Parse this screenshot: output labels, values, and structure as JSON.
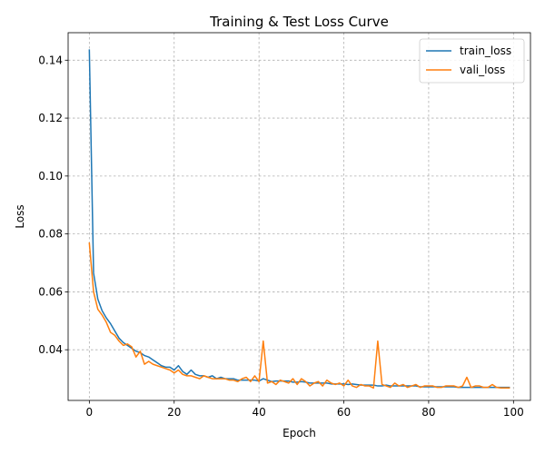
{
  "chart_data": {
    "type": "line",
    "title": "Training & Test Loss Curve",
    "xlabel": "Epoch",
    "ylabel": "Loss",
    "xlim": [
      -5,
      104
    ],
    "ylim": [
      0.0225,
      0.1495
    ],
    "x_ticks": [
      0,
      20,
      40,
      60,
      80,
      100
    ],
    "x_tick_labels": [
      "0",
      "20",
      "40",
      "60",
      "80",
      "100"
    ],
    "y_ticks": [
      0.04,
      0.06,
      0.08,
      0.1,
      0.12,
      0.14
    ],
    "y_tick_labels": [
      "0.04",
      "0.06",
      "0.08",
      "0.10",
      "0.12",
      "0.14"
    ],
    "grid": true,
    "legend_position": "upper right",
    "x": [
      0,
      1,
      2,
      3,
      4,
      5,
      6,
      7,
      8,
      9,
      10,
      11,
      12,
      13,
      14,
      15,
      16,
      17,
      18,
      19,
      20,
      21,
      22,
      23,
      24,
      25,
      26,
      27,
      28,
      29,
      30,
      31,
      32,
      33,
      34,
      35,
      36,
      37,
      38,
      39,
      40,
      41,
      42,
      43,
      44,
      45,
      46,
      47,
      48,
      49,
      50,
      51,
      52,
      53,
      54,
      55,
      56,
      57,
      58,
      59,
      60,
      61,
      62,
      63,
      64,
      65,
      66,
      67,
      68,
      69,
      70,
      71,
      72,
      73,
      74,
      75,
      76,
      77,
      78,
      79,
      80,
      81,
      82,
      83,
      84,
      85,
      86,
      87,
      88,
      89,
      90,
      91,
      92,
      93,
      94,
      95,
      96,
      97,
      98,
      99
    ],
    "series": [
      {
        "name": "train_loss",
        "color": "#1f77b4",
        "values": [
          0.1435,
          0.0665,
          0.0575,
          0.0535,
          0.051,
          0.049,
          0.0465,
          0.044,
          0.0425,
          0.0415,
          0.0405,
          0.0395,
          0.039,
          0.038,
          0.0375,
          0.0365,
          0.0355,
          0.0345,
          0.034,
          0.034,
          0.033,
          0.0345,
          0.0325,
          0.0315,
          0.033,
          0.0315,
          0.031,
          0.031,
          0.0305,
          0.031,
          0.03,
          0.0305,
          0.03,
          0.03,
          0.03,
          0.0295,
          0.0295,
          0.0295,
          0.0295,
          0.0295,
          0.0292,
          0.03,
          0.0295,
          0.029,
          0.0292,
          0.0292,
          0.0292,
          0.0292,
          0.0288,
          0.0288,
          0.029,
          0.0288,
          0.0285,
          0.0285,
          0.0285,
          0.0285,
          0.0285,
          0.0282,
          0.0282,
          0.0282,
          0.0282,
          0.028,
          0.0282,
          0.028,
          0.0278,
          0.0278,
          0.0278,
          0.0278,
          0.0275,
          0.0275,
          0.0278,
          0.0275,
          0.0275,
          0.0275,
          0.0275,
          0.0275,
          0.0275,
          0.0275,
          0.0272,
          0.0272,
          0.0272,
          0.0272,
          0.0272,
          0.0272,
          0.0272,
          0.0272,
          0.0272,
          0.027,
          0.027,
          0.027,
          0.027,
          0.027,
          0.027,
          0.027,
          0.027,
          0.027,
          0.027,
          0.027,
          0.027,
          0.027
        ]
      },
      {
        "name": "vali_loss",
        "color": "#ff7f0e",
        "values": [
          0.0768,
          0.06,
          0.054,
          0.052,
          0.0495,
          0.046,
          0.045,
          0.043,
          0.0415,
          0.042,
          0.041,
          0.0375,
          0.0395,
          0.035,
          0.036,
          0.035,
          0.0345,
          0.034,
          0.0335,
          0.033,
          0.032,
          0.033,
          0.0315,
          0.031,
          0.031,
          0.0305,
          0.03,
          0.031,
          0.0305,
          0.03,
          0.03,
          0.03,
          0.03,
          0.0295,
          0.0295,
          0.029,
          0.03,
          0.0305,
          0.029,
          0.031,
          0.029,
          0.043,
          0.0285,
          0.029,
          0.028,
          0.0295,
          0.029,
          0.0285,
          0.03,
          0.028,
          0.03,
          0.029,
          0.0275,
          0.0285,
          0.029,
          0.0275,
          0.0295,
          0.0285,
          0.028,
          0.0285,
          0.0275,
          0.0295,
          0.0275,
          0.027,
          0.028,
          0.0275,
          0.0275,
          0.0268,
          0.043,
          0.028,
          0.0275,
          0.027,
          0.0285,
          0.0275,
          0.028,
          0.027,
          0.0275,
          0.028,
          0.027,
          0.0275,
          0.0275,
          0.0275,
          0.027,
          0.027,
          0.0275,
          0.0275,
          0.0275,
          0.027,
          0.0275,
          0.0305,
          0.027,
          0.0275,
          0.0275,
          0.027,
          0.027,
          0.028,
          0.027,
          0.0268,
          0.0268,
          0.0268
        ]
      }
    ]
  }
}
